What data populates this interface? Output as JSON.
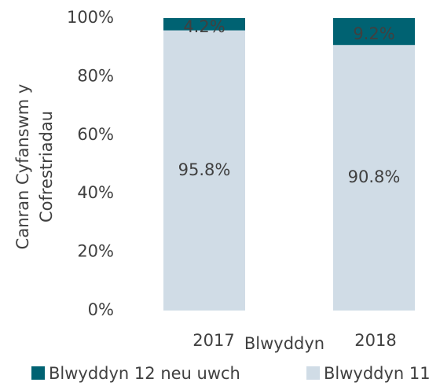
{
  "chart_data": {
    "type": "stacked_bar",
    "categories": [
      "2017",
      "2018"
    ],
    "series": [
      {
        "name": "Blwyddyn 11",
        "color": "#d0dce6",
        "values": [
          95.8,
          90.8
        ],
        "value_labels": [
          "95.8%",
          "90.8%"
        ]
      },
      {
        "name": "Blwyddyn 12 neu uwch",
        "color": "#006272",
        "values": [
          4.2,
          9.2
        ],
        "value_labels": [
          "4.2%",
          "9.2%"
        ]
      }
    ],
    "ylim": [
      0,
      100
    ],
    "yticks": [
      {
        "value": 0,
        "label": "0%"
      },
      {
        "value": 20,
        "label": "20%"
      },
      {
        "value": 40,
        "label": "40%"
      },
      {
        "value": 60,
        "label": "60%"
      },
      {
        "value": 80,
        "label": "80%"
      },
      {
        "value": 100,
        "label": "100%"
      }
    ],
    "x_label": "Blwyddyn",
    "y_label": [
      "Canran Cyfanswm y",
      "Cofrestriadau"
    ],
    "legend": "bottom"
  }
}
